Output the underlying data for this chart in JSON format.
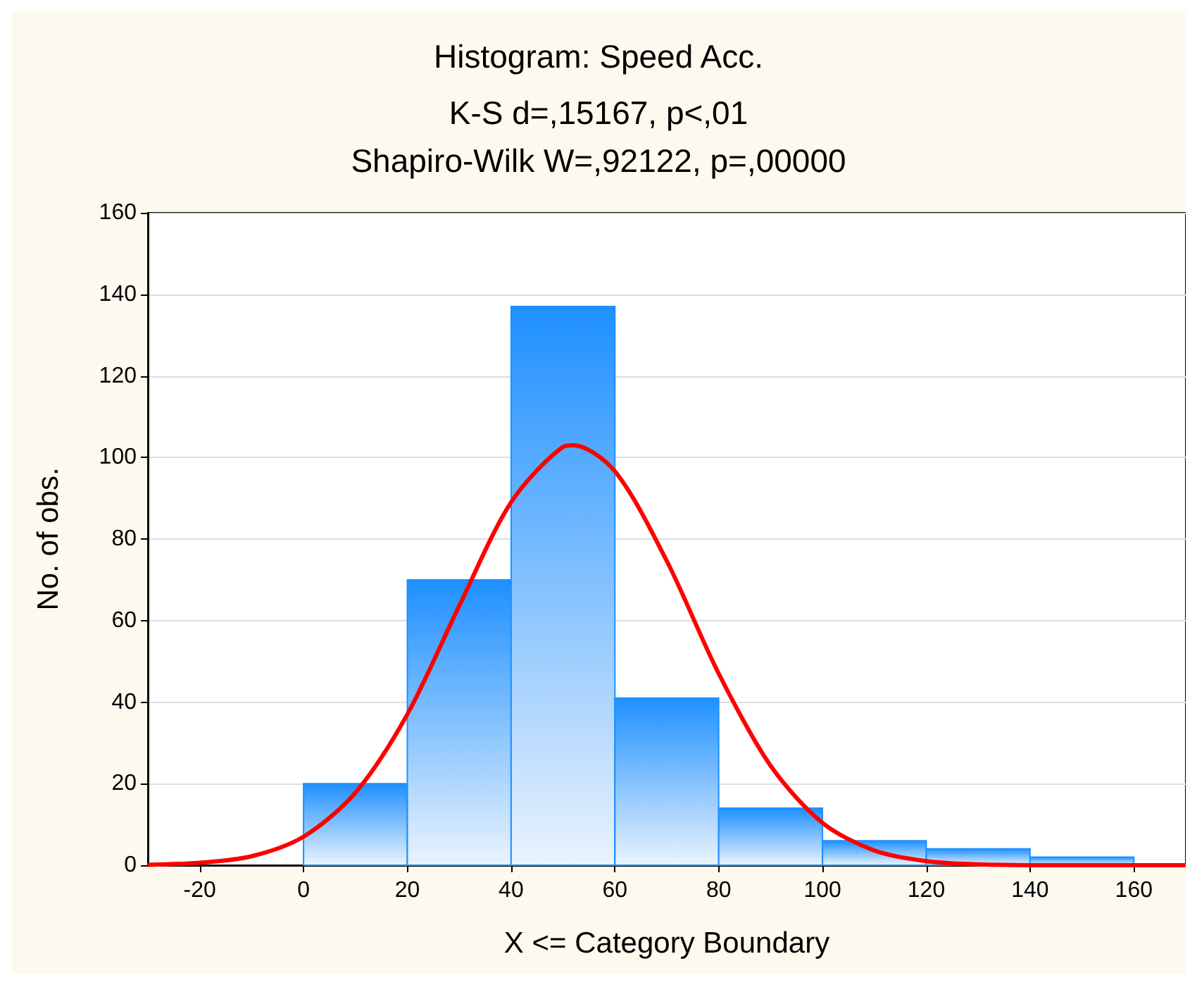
{
  "chart_data": {
    "type": "histogram",
    "title": "Histogram: Speed Acc.",
    "subtitle": "K-S d=,15167, p<,01\nShapiro-Wilk W=,92122, p=,00000",
    "xlabel": "X <= Category Boundary",
    "ylabel": "No. of obs.",
    "bins": [
      0,
      20,
      40,
      60,
      80,
      100,
      120,
      140,
      160
    ],
    "values": [
      20,
      70,
      137,
      41,
      14,
      6,
      4,
      2
    ],
    "color": "#1e90ff",
    "series": [
      {
        "type": "line",
        "color": "#ff0000",
        "x": [
          -30,
          -20,
          -10,
          0,
          10,
          20,
          30,
          40,
          50,
          52,
          60,
          70,
          80,
          90,
          100,
          110,
          120,
          130,
          140,
          150,
          160,
          170
        ],
        "values": [
          0.1,
          0.6,
          2.2,
          7,
          17.8,
          37,
          63.6,
          89,
          102.6,
          103,
          96.6,
          74.6,
          47,
          24.4,
          10.4,
          3.6,
          1,
          0.2,
          0,
          0,
          0,
          0
        ]
      }
    ],
    "xlim": [
      -30,
      170
    ],
    "xticks": [
      -20,
      0,
      20,
      40,
      60,
      80,
      100,
      120,
      140,
      160
    ],
    "ylim": [
      0,
      160
    ],
    "yticks": [
      0,
      20,
      40,
      60,
      80,
      100,
      120,
      140,
      160
    ],
    "grid": "y"
  }
}
